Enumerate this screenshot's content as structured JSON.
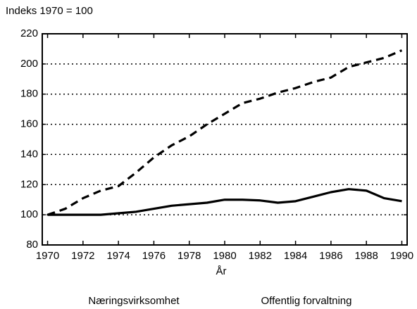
{
  "chart_data": {
    "type": "line",
    "ylabel": "Indeks 1970 = 100",
    "xlabel": "År",
    "x": [
      1970,
      1971,
      1972,
      1973,
      1974,
      1975,
      1976,
      1977,
      1978,
      1979,
      1980,
      1981,
      1982,
      1983,
      1984,
      1985,
      1986,
      1987,
      1988,
      1989,
      1990
    ],
    "series": [
      {
        "name": "Næringsvirksomhet",
        "color": "#000000",
        "dash": "solid",
        "values": [
          100,
          100,
          100,
          100,
          101,
          102,
          104,
          106,
          107,
          108,
          110,
          110,
          109.5,
          108,
          109,
          112,
          115,
          117,
          116,
          111,
          109
        ]
      },
      {
        "name": "Offentlig forvaltning",
        "color": "#000000",
        "dash": "dashed",
        "values": [
          100,
          104,
          111,
          116,
          119,
          128,
          138,
          146,
          152,
          160,
          167,
          174,
          177,
          181,
          184,
          188,
          191,
          198,
          201,
          204,
          209
        ]
      }
    ],
    "xlim": [
      1969.7,
      1990.3
    ],
    "xticks": [
      1970,
      1972,
      1974,
      1976,
      1978,
      1980,
      1982,
      1984,
      1986,
      1988,
      1990
    ],
    "ylim": [
      80,
      220
    ],
    "yticks": [
      80,
      100,
      120,
      140,
      160,
      180,
      200,
      220
    ],
    "grid": true,
    "legend": "bottom"
  }
}
